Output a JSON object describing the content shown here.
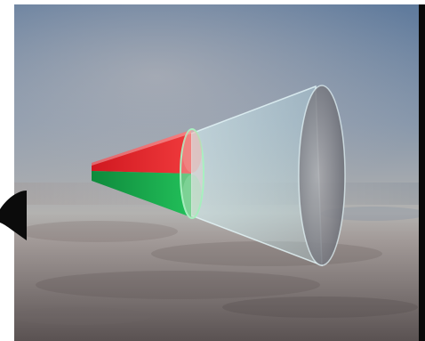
{
  "colors": {
    "sky_top": "#5f7a9c",
    "sky_mid": "#8a98a8",
    "sky_horizon": "#b5b4b2",
    "earth_far": "#8c8480",
    "earth_near": "#5a5252",
    "cone_red": "#e81f2a",
    "cone_green": "#16a24a",
    "cone_glass": "#cfeff2",
    "cone_outline": "#e6f7fa",
    "lens_glow": "#a8f0c0",
    "frame_shadow": "#0a0a0a"
  },
  "icons": {
    "red_segment": "red-beam-segment-icon",
    "green_segment": "green-beam-segment-icon",
    "outer_cone": "translucent-cone-icon",
    "lens": "lens-ring-icon"
  }
}
